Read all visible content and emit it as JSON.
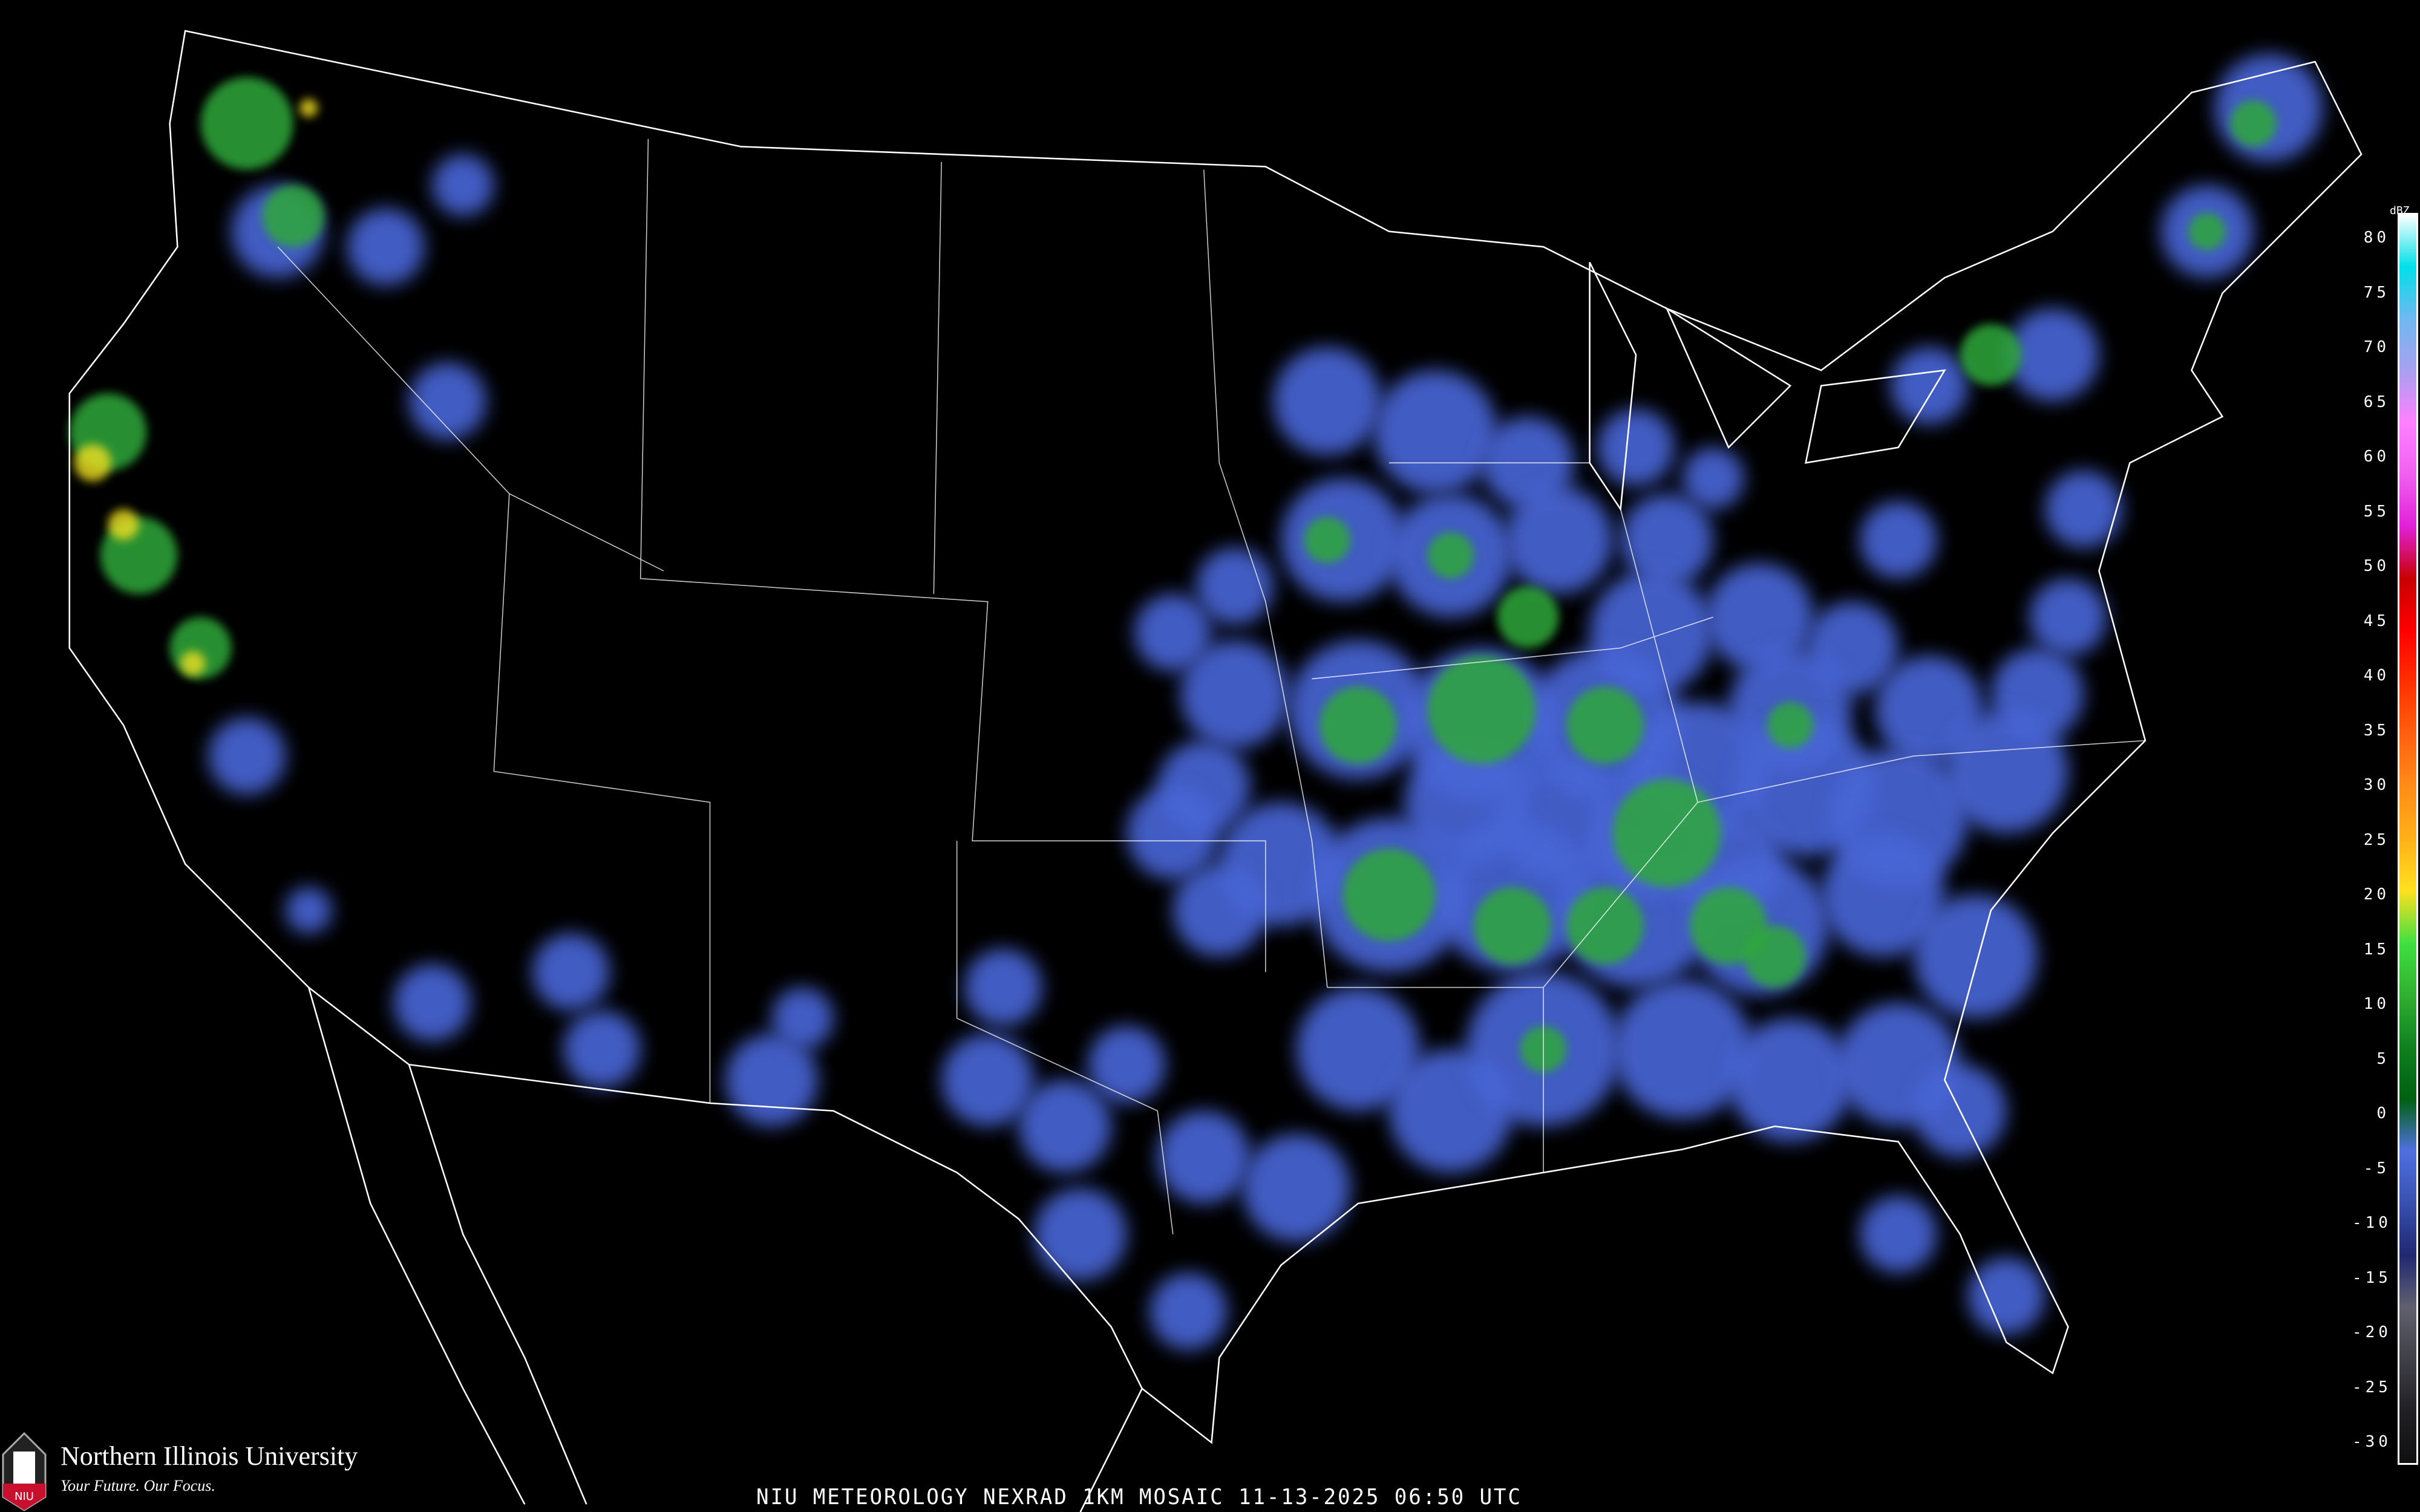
{
  "title": "NIU METEOROLOGY NEXRAD 1KM MOSAIC  11-13-2025 06:50 UTC",
  "logo": {
    "name": "Northern Illinois University",
    "tagline": "Your Future. Our Focus.",
    "badge": "NIU"
  },
  "legend": {
    "unit": "dBZ",
    "ticks": [
      "80",
      "75",
      "70",
      "65",
      "60",
      "55",
      "50",
      "45",
      "40",
      "35",
      "30",
      "25",
      "20",
      "15",
      "10",
      "5",
      "0",
      "-5",
      "-10",
      "-15",
      "-20",
      "-25",
      "-30"
    ],
    "colors": [
      "#ffffff",
      "#00e0e8",
      "#70b8f0",
      "#a8a0f0",
      "#ff80ff",
      "#f060f0",
      "#e020d8",
      "#c80000",
      "#ff0000",
      "#ff3000",
      "#ff6010",
      "#ff8c18",
      "#ffb018",
      "#ffe020",
      "#40e040",
      "#30b030",
      "#108020",
      "#006010",
      "#5070e0",
      "#3850b0",
      "#202870",
      "#606070",
      "#404048",
      "#202024",
      "#101010"
    ]
  },
  "colors": {
    "background": "#000000",
    "light_echo": "#4a66d8",
    "moderate_echo": "#2fa83a",
    "strong_echo": "#f0e020",
    "borders": "#ffffff",
    "roads": "#8a4a20"
  }
}
